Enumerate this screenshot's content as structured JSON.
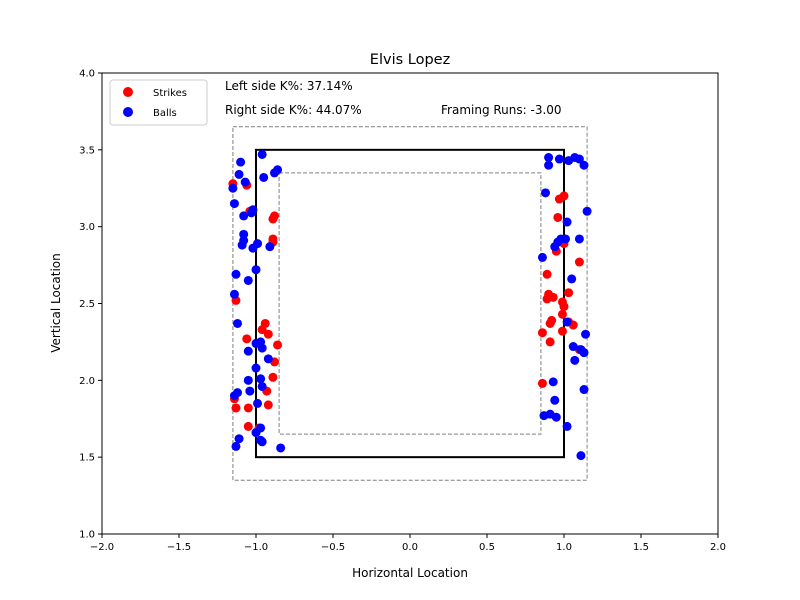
{
  "chart_data": {
    "type": "scatter",
    "title": "Elvis Lopez",
    "xlabel": "Horizontal Location",
    "ylabel": "Vertical Location",
    "xlim": [
      -2.0,
      2.0
    ],
    "ylim": [
      1.0,
      4.0
    ],
    "x_ticks": [
      "−2.0",
      "−1.5",
      "−1.0",
      "−0.5",
      "0.0",
      "0.5",
      "1.0",
      "1.5",
      "2.0"
    ],
    "y_ticks": [
      "1.0",
      "1.5",
      "2.0",
      "2.5",
      "3.0",
      "3.5",
      "4.0"
    ],
    "grid": false,
    "legend_position": "top-left",
    "annotations": {
      "left_k": "Left side K%: 37.14%",
      "right_k": "Right side K%: 44.07%",
      "framing": "Framing Runs: -3.00"
    },
    "zone": {
      "strike_zone": {
        "x": [
          -1.0,
          1.0
        ],
        "y": [
          1.5,
          3.5
        ],
        "color": "#000000"
      },
      "outer_zone": {
        "x": [
          -1.15,
          1.15
        ],
        "y": [
          1.35,
          3.65
        ],
        "color": "#808080"
      },
      "inner_zone": {
        "x": [
          -0.85,
          0.85
        ],
        "y": [
          1.65,
          3.35
        ],
        "color": "#808080"
      }
    },
    "series": [
      {
        "name": "Strikes",
        "color": "#ff0000",
        "points": [
          [
            -1.15,
            3.28
          ],
          [
            -1.06,
            3.27
          ],
          [
            -1.04,
            3.1
          ],
          [
            -0.88,
            3.07
          ],
          [
            -0.89,
            3.05
          ],
          [
            -0.89,
            2.92
          ],
          [
            -0.89,
            2.9
          ],
          [
            -1.13,
            2.52
          ],
          [
            -0.94,
            2.37
          ],
          [
            -0.96,
            2.33
          ],
          [
            -0.92,
            2.3
          ],
          [
            -0.86,
            2.23
          ],
          [
            -1.06,
            2.27
          ],
          [
            -0.88,
            2.12
          ],
          [
            -0.93,
            1.93
          ],
          [
            -0.89,
            2.02
          ],
          [
            -1.14,
            1.88
          ],
          [
            -1.13,
            1.82
          ],
          [
            -1.05,
            1.82
          ],
          [
            -0.92,
            1.84
          ],
          [
            -1.05,
            1.7
          ],
          [
            -0.98,
            1.69
          ],
          [
            1.0,
            3.2
          ],
          [
            0.97,
            3.18
          ],
          [
            0.96,
            3.06
          ],
          [
            1.1,
            2.77
          ],
          [
            0.95,
            2.84
          ],
          [
            1.0,
            2.89
          ],
          [
            0.89,
            2.69
          ],
          [
            0.9,
            2.56
          ],
          [
            0.89,
            2.53
          ],
          [
            0.93,
            2.54
          ],
          [
            0.99,
            2.51
          ],
          [
            1.0,
            2.48
          ],
          [
            0.99,
            2.43
          ],
          [
            0.92,
            2.39
          ],
          [
            0.91,
            2.37
          ],
          [
            1.03,
            2.57
          ],
          [
            1.06,
            2.36
          ],
          [
            0.86,
            2.31
          ],
          [
            0.91,
            2.25
          ],
          [
            1.03,
            2.38
          ],
          [
            1.1,
            2.2
          ],
          [
            0.99,
            2.32
          ],
          [
            0.86,
            1.98
          ]
        ]
      },
      {
        "name": "Balls",
        "color": "#0000ff",
        "points": [
          [
            -1.1,
            3.42
          ],
          [
            -1.11,
            3.34
          ],
          [
            -0.96,
            3.47
          ],
          [
            -1.15,
            3.25
          ],
          [
            -1.07,
            3.29
          ],
          [
            -0.95,
            3.32
          ],
          [
            -0.88,
            3.35
          ],
          [
            -0.86,
            3.37
          ],
          [
            -1.14,
            3.15
          ],
          [
            -1.02,
            3.11
          ],
          [
            -1.08,
            3.07
          ],
          [
            -1.03,
            3.09
          ],
          [
            -1.08,
            2.95
          ],
          [
            -1.08,
            2.91
          ],
          [
            -1.09,
            2.88
          ],
          [
            -1.02,
            2.86
          ],
          [
            -0.99,
            2.89
          ],
          [
            -0.91,
            2.87
          ],
          [
            -1.0,
            2.72
          ],
          [
            -1.13,
            2.69
          ],
          [
            -1.05,
            2.65
          ],
          [
            -1.14,
            2.56
          ],
          [
            -1.12,
            2.37
          ],
          [
            -1.0,
            2.24
          ],
          [
            -0.97,
            2.25
          ],
          [
            -0.96,
            2.21
          ],
          [
            -1.05,
            2.19
          ],
          [
            -0.92,
            2.14
          ],
          [
            -1.0,
            2.08
          ],
          [
            -0.97,
            2.01
          ],
          [
            -1.05,
            2.0
          ],
          [
            -0.96,
            1.96
          ],
          [
            -1.04,
            1.93
          ],
          [
            -1.12,
            1.92
          ],
          [
            -0.99,
            1.85
          ],
          [
            -1.14,
            1.9
          ],
          [
            -0.97,
            1.69
          ],
          [
            -1.0,
            1.66
          ],
          [
            -1.11,
            1.62
          ],
          [
            -0.97,
            1.61
          ],
          [
            -0.96,
            1.6
          ],
          [
            -1.13,
            1.57
          ],
          [
            -0.84,
            1.56
          ],
          [
            0.9,
            3.45
          ],
          [
            0.9,
            3.4
          ],
          [
            0.97,
            3.44
          ],
          [
            1.03,
            3.43
          ],
          [
            1.07,
            3.45
          ],
          [
            1.1,
            3.44
          ],
          [
            1.13,
            3.4
          ],
          [
            0.88,
            3.22
          ],
          [
            1.15,
            3.1
          ],
          [
            1.02,
            3.03
          ],
          [
            1.1,
            2.92
          ],
          [
            0.98,
            2.92
          ],
          [
            1.01,
            2.92
          ],
          [
            0.96,
            2.9
          ],
          [
            0.94,
            2.87
          ],
          [
            0.86,
            2.8
          ],
          [
            1.05,
            2.66
          ],
          [
            1.02,
            2.38
          ],
          [
            1.14,
            2.3
          ],
          [
            1.06,
            2.22
          ],
          [
            1.11,
            2.2
          ],
          [
            1.13,
            2.18
          ],
          [
            1.07,
            2.13
          ],
          [
            0.93,
            1.99
          ],
          [
            1.13,
            1.94
          ],
          [
            0.94,
            1.87
          ],
          [
            0.87,
            1.77
          ],
          [
            0.91,
            1.78
          ],
          [
            0.95,
            1.76
          ],
          [
            1.02,
            1.7
          ],
          [
            1.11,
            1.51
          ]
        ]
      }
    ]
  }
}
